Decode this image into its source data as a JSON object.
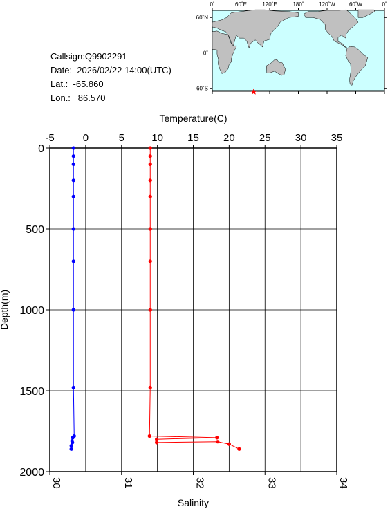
{
  "info": {
    "callsign": "Callsign:Q9902291",
    "date": "Date:  2026/02/22 14:00(UTC)",
    "lat": "Lat.:  -65.860",
    "lon": "Lon.:   86.570"
  },
  "map": {
    "lon_labels": [
      "0˚",
      "60˚E",
      "120˚E",
      "180˚",
      "120˚W",
      "60˚W",
      "0˚"
    ],
    "lat_labels": [
      "60˚N",
      "0˚",
      "60˚S"
    ],
    "ocean_color": "#ccffff",
    "land_color": "#c0c0c0",
    "marker": {
      "lon": 86.57,
      "lat": -65.86,
      "color": "#ff0000"
    }
  },
  "chart_data": {
    "type": "line",
    "temperature_axis": {
      "label": "Temperature(C)",
      "range": [
        -5,
        35
      ],
      "ticks": [
        "-5",
        "0",
        "5",
        "10",
        "15",
        "20",
        "25",
        "30",
        "35"
      ]
    },
    "salinity_axis": {
      "label": "Salinity",
      "range": [
        30,
        34
      ],
      "ticks": [
        "30",
        "31",
        "32",
        "33",
        "34"
      ]
    },
    "depth_axis": {
      "label": "Depth(m)",
      "range": [
        0,
        2000
      ],
      "inverted": true,
      "ticks": [
        "0",
        "500",
        "1000",
        "1500",
        "2000"
      ]
    },
    "grid": true,
    "series": [
      {
        "kind": "temperature",
        "color": "#0000ff",
        "points": [
          [
            -1.7,
            0
          ],
          [
            -1.7,
            50
          ],
          [
            -1.7,
            100
          ],
          [
            -1.7,
            200
          ],
          [
            -1.7,
            300
          ],
          [
            -1.7,
            500
          ],
          [
            -1.7,
            700
          ],
          [
            -1.7,
            1000
          ],
          [
            -1.7,
            1480
          ],
          [
            -1.6,
            1780
          ],
          [
            -1.8,
            1790
          ],
          [
            -1.9,
            1810
          ],
          [
            -1.85,
            1820
          ],
          [
            -2.0,
            1840
          ],
          [
            -2.0,
            1860
          ]
        ]
      },
      {
        "kind": "salinity",
        "color": "#ff0000",
        "points": [
          [
            31.4,
            0
          ],
          [
            31.4,
            50
          ],
          [
            31.4,
            100
          ],
          [
            31.4,
            200
          ],
          [
            31.4,
            300
          ],
          [
            31.4,
            500
          ],
          [
            31.4,
            700
          ],
          [
            31.4,
            1000
          ],
          [
            31.4,
            1480
          ],
          [
            31.39,
            1780
          ],
          [
            32.33,
            1790
          ],
          [
            31.49,
            1800
          ],
          [
            31.49,
            1820
          ],
          [
            32.34,
            1815
          ],
          [
            32.5,
            1830
          ],
          [
            32.64,
            1860
          ]
        ]
      }
    ]
  }
}
